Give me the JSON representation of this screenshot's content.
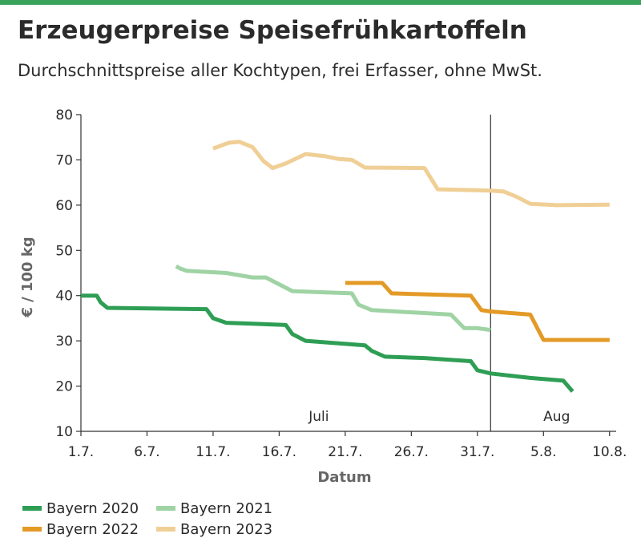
{
  "header": {
    "title": "Erzeugerpreise Speisefrühkartoffeln",
    "subtitle": "Durchschnittspreise aller Kochtypen, frei Erfasser, ohne MwSt."
  },
  "colors": {
    "top_bar": "#3aa35b",
    "Bayern 2020": "#2e9e54",
    "Bayern 2021": "#9fd3a4",
    "Bayern 2022": "#e39a26",
    "Bayern 2023": "#f0cf96"
  },
  "chart_data": {
    "type": "line",
    "xlabel": "Datum",
    "ylabel": "€ / 100 kg",
    "ylim": [
      10,
      80
    ],
    "yticks": [
      10,
      20,
      30,
      40,
      50,
      60,
      70,
      80
    ],
    "xlim": [
      1,
      41.5
    ],
    "x_ticks": [
      {
        "label": "1.7.",
        "x": 1
      },
      {
        "label": "6.7.",
        "x": 6
      },
      {
        "label": "11.7.",
        "x": 11
      },
      {
        "label": "16.7.",
        "x": 16
      },
      {
        "label": "21.7.",
        "x": 21
      },
      {
        "label": "26.7.",
        "x": 26
      },
      {
        "label": "31.7.",
        "x": 31
      },
      {
        "label": "5.8.",
        "x": 36
      },
      {
        "label": "10.8.",
        "x": 41
      }
    ],
    "month_labels": [
      {
        "label": "Juli",
        "x": 19
      },
      {
        "label": "Aug",
        "x": 37
      }
    ],
    "month_divider_x": 32,
    "grid": false,
    "legend_position": "bottom-left",
    "series": [
      {
        "name": "Bayern 2020",
        "x": [
          1,
          2.2,
          2.5,
          3,
          10.5,
          11,
          12,
          14,
          16.5,
          17,
          18,
          22.5,
          23,
          24,
          27,
          30.5,
          31,
          32,
          35,
          37.5,
          38.2
        ],
        "y": [
          40,
          40,
          38.5,
          37.3,
          37,
          35,
          34,
          33.8,
          33.5,
          31.5,
          30,
          29,
          27.8,
          26.5,
          26.2,
          25.5,
          23.5,
          22.8,
          21.8,
          21.2,
          18.8
        ]
      },
      {
        "name": "Bayern 2021",
        "x": [
          8.2,
          8.5,
          9,
          12,
          14,
          15,
          17,
          21.5,
          22,
          23,
          29,
          30,
          31,
          32
        ],
        "y": [
          46.5,
          46,
          45.5,
          45,
          44,
          44,
          41,
          40.5,
          38,
          36.8,
          35.8,
          32.8,
          32.8,
          32.4
        ]
      },
      {
        "name": "Bayern 2022",
        "x": [
          21,
          23.8,
          24.5,
          30.5,
          31.3,
          32,
          35,
          36,
          41
        ],
        "y": [
          42.8,
          42.8,
          40.5,
          40.0,
          36.8,
          36.5,
          35.8,
          30.2,
          30.2
        ]
      },
      {
        "name": "Bayern 2023",
        "x": [
          11,
          12.2,
          13,
          14,
          14.8,
          15.5,
          16.5,
          18,
          19.5,
          20.5,
          21.5,
          22.5,
          27,
          28,
          32,
          33,
          34,
          35,
          37,
          41
        ],
        "y": [
          72.5,
          73.8,
          74,
          72.8,
          69.8,
          68.2,
          69.2,
          71.3,
          70.8,
          70.2,
          70,
          68.3,
          68.2,
          63.5,
          63.2,
          63,
          61.8,
          60.3,
          60,
          60.1
        ]
      }
    ]
  }
}
